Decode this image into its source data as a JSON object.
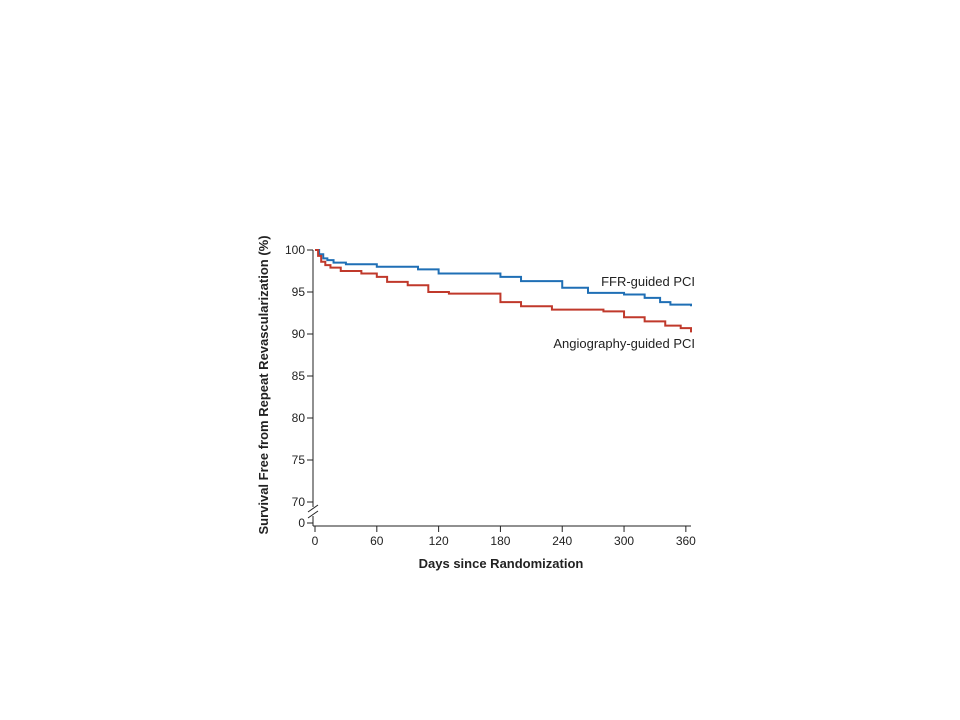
{
  "chart_data": {
    "type": "line",
    "step": true,
    "xlabel": "Days since Randomization",
    "ylabel": "Survival Free from Repeat Revascularization (%)",
    "xlim": [
      0,
      365
    ],
    "xticks": [
      0,
      60,
      120,
      180,
      240,
      300,
      360
    ],
    "yticks": [
      0,
      70,
      75,
      80,
      85,
      90,
      95,
      100
    ],
    "y_axis_break": [
      0,
      70
    ],
    "ylim": [
      0,
      100
    ],
    "grid": false,
    "legend": "inline labels at right end of lines",
    "series": [
      {
        "name": "FFR-guided PCI",
        "color": "#1f6fb5",
        "x": [
          0,
          4,
          8,
          12,
          18,
          30,
          60,
          100,
          120,
          180,
          200,
          240,
          265,
          300,
          320,
          335,
          345,
          365
        ],
        "y": [
          100,
          99.5,
          99.0,
          98.8,
          98.5,
          98.3,
          98.0,
          97.7,
          97.2,
          96.8,
          96.3,
          95.5,
          94.9,
          94.7,
          94.3,
          93.8,
          93.5,
          93.3
        ]
      },
      {
        "name": "Angiography-guided PCI",
        "color": "#c0392b",
        "x": [
          0,
          3,
          6,
          10,
          15,
          25,
          45,
          60,
          70,
          90,
          110,
          130,
          180,
          200,
          230,
          280,
          300,
          320,
          340,
          355,
          365
        ],
        "y": [
          100,
          99.3,
          98.6,
          98.2,
          97.9,
          97.5,
          97.2,
          96.8,
          96.2,
          95.8,
          95.0,
          94.8,
          93.8,
          93.3,
          92.9,
          92.7,
          92.0,
          91.5,
          91.0,
          90.7,
          90.2
        ]
      }
    ]
  }
}
